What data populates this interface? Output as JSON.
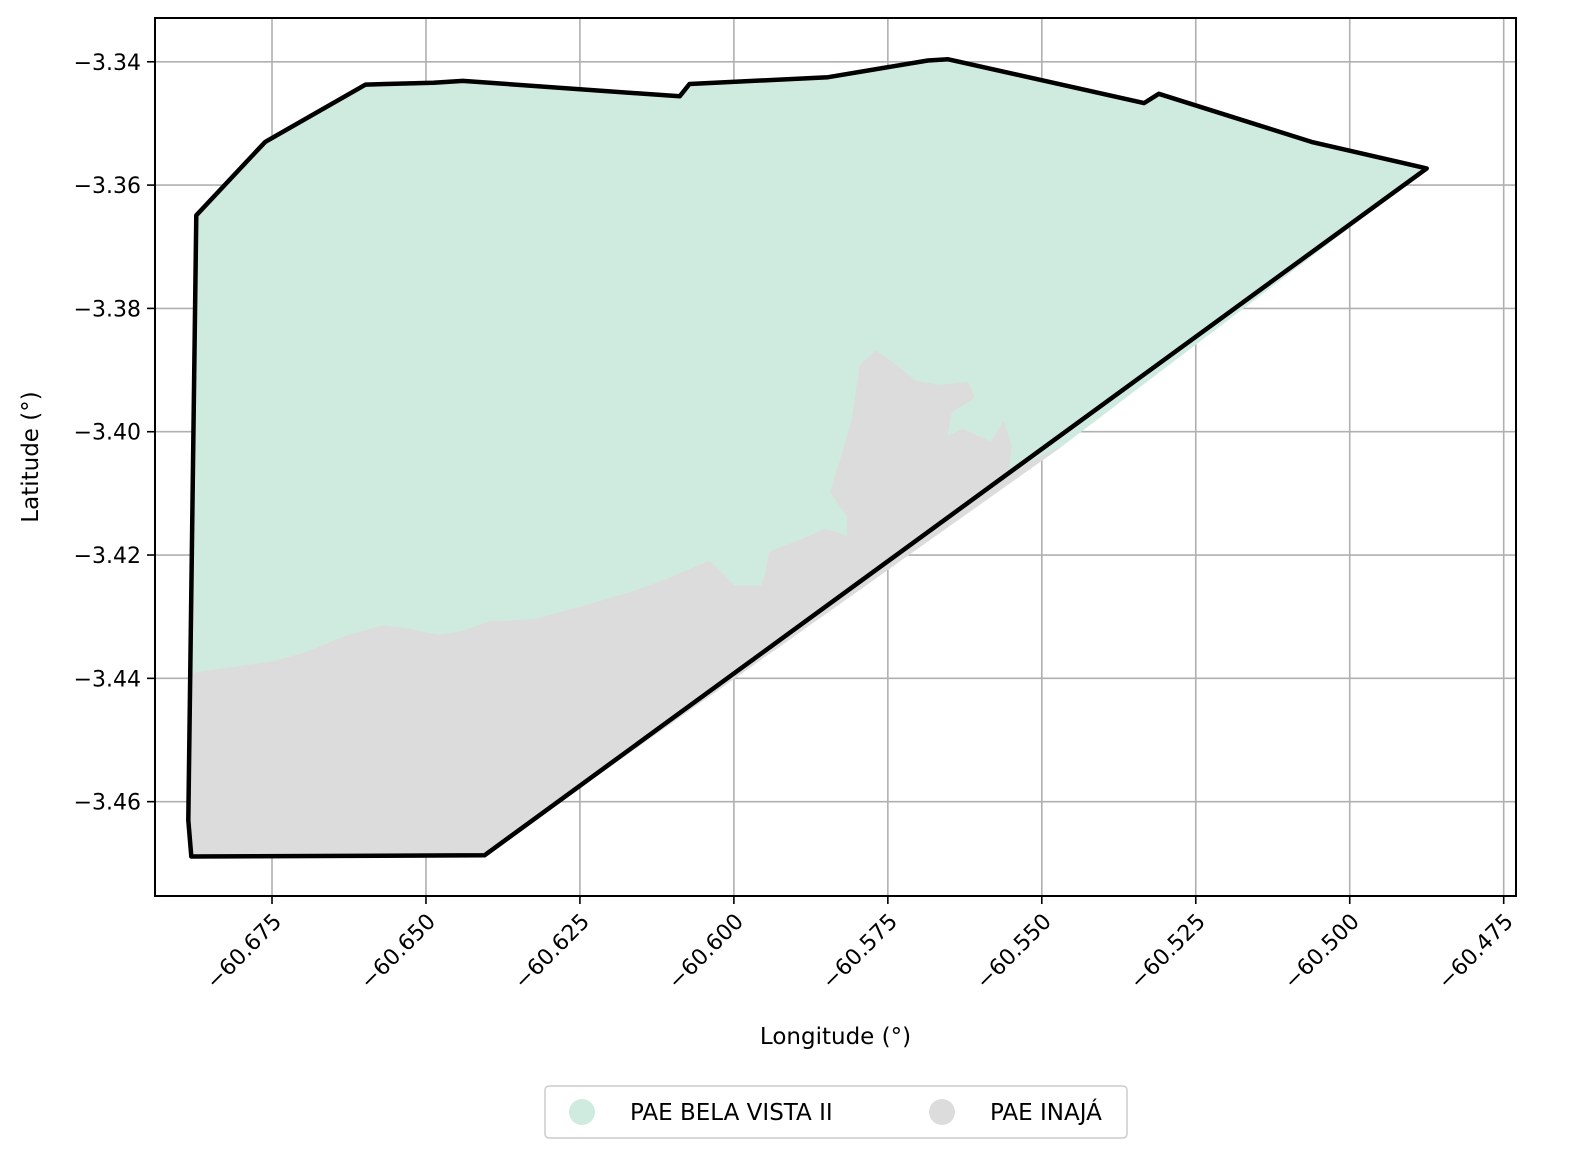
{
  "chart_data": {
    "type": "map",
    "xlabel": "Longitude (°)",
    "ylabel": "Latitude (°)",
    "xlim": [
      -60.694,
      -60.473
    ],
    "ylim": [
      -3.4753,
      -3.3329
    ],
    "xticks": [
      -60.675,
      -60.65,
      -60.625,
      -60.6,
      -60.575,
      -60.55,
      -60.525,
      -60.5,
      -60.475
    ],
    "xtick_labels": [
      "−60.675",
      "−60.650",
      "−60.625",
      "−60.600",
      "−60.575",
      "−60.550",
      "−60.525",
      "−60.500",
      "−60.475"
    ],
    "yticks": [
      -3.34,
      -3.36,
      -3.38,
      -3.4,
      -3.42,
      -3.44,
      -3.46
    ],
    "ytick_labels": [
      "−3.34",
      "−3.36",
      "−3.38",
      "−3.40",
      "−3.42",
      "−3.44",
      "−3.46"
    ],
    "grid": true,
    "legend_position": "bottom-center",
    "regions": [
      {
        "name": "PAE BELA VISTA II",
        "color": "#cfebdf",
        "polygon": [
          [
            -60.6873,
            -3.3649
          ],
          [
            -60.6761,
            -3.353
          ],
          [
            -60.6598,
            -3.3437
          ],
          [
            -60.6488,
            -3.3434
          ],
          [
            -60.644,
            -3.3431
          ],
          [
            -60.6088,
            -3.3456
          ],
          [
            -60.6072,
            -3.3436
          ],
          [
            -60.5847,
            -3.3425
          ],
          [
            -60.5685,
            -3.3398
          ],
          [
            -60.5652,
            -3.3396
          ],
          [
            -60.5334,
            -3.3467
          ],
          [
            -60.531,
            -3.3452
          ],
          [
            -60.5062,
            -3.353
          ],
          [
            -60.4875,
            -3.3573
          ],
          [
            -60.547,
            -3.4025
          ],
          [
            -60.5554,
            -3.4066
          ],
          [
            -60.555,
            -3.4022
          ],
          [
            -60.5562,
            -3.3984
          ],
          [
            -60.5583,
            -3.4017
          ],
          [
            -60.5628,
            -3.3996
          ],
          [
            -60.5654,
            -3.4008
          ],
          [
            -60.5647,
            -3.3968
          ],
          [
            -60.561,
            -3.3945
          ],
          [
            -60.562,
            -3.392
          ],
          [
            -60.5665,
            -3.3925
          ],
          [
            -60.5705,
            -3.3918
          ],
          [
            -60.5735,
            -3.3893
          ],
          [
            -60.577,
            -3.3869
          ],
          [
            -60.5795,
            -3.3893
          ],
          [
            -60.5808,
            -3.3982
          ],
          [
            -60.5822,
            -3.403
          ],
          [
            -60.5843,
            -3.4098
          ],
          [
            -60.5815,
            -3.4138
          ],
          [
            -60.5815,
            -3.417
          ],
          [
            -60.5852,
            -3.4158
          ],
          [
            -60.589,
            -3.4175
          ],
          [
            -60.5942,
            -3.4195
          ],
          [
            -60.5948,
            -3.423
          ],
          [
            -60.5955,
            -3.425
          ],
          [
            -60.6,
            -3.425
          ],
          [
            -60.604,
            -3.421
          ],
          [
            -60.611,
            -3.424
          ],
          [
            -60.6165,
            -3.426
          ],
          [
            -60.625,
            -3.4285
          ],
          [
            -60.6325,
            -3.4305
          ],
          [
            -60.6395,
            -3.4308
          ],
          [
            -60.6445,
            -3.4325
          ],
          [
            -60.648,
            -3.433
          ],
          [
            -60.653,
            -3.432
          ],
          [
            -60.657,
            -3.4315
          ],
          [
            -60.6625,
            -3.433
          ],
          [
            -60.67,
            -3.436
          ],
          [
            -60.6749,
            -3.4373
          ],
          [
            -60.688,
            -3.4392
          ],
          [
            -60.6873,
            -3.3649
          ]
        ]
      },
      {
        "name": "PAE INAJÁ",
        "color": "#dcdcdc",
        "polygon": [
          [
            -60.688,
            -3.4392
          ],
          [
            -60.6749,
            -3.4373
          ],
          [
            -60.67,
            -3.436
          ],
          [
            -60.6625,
            -3.433
          ],
          [
            -60.657,
            -3.4315
          ],
          [
            -60.653,
            -3.432
          ],
          [
            -60.648,
            -3.433
          ],
          [
            -60.6445,
            -3.4325
          ],
          [
            -60.6395,
            -3.4308
          ],
          [
            -60.6325,
            -3.4305
          ],
          [
            -60.625,
            -3.4285
          ],
          [
            -60.6165,
            -3.426
          ],
          [
            -60.611,
            -3.424
          ],
          [
            -60.604,
            -3.421
          ],
          [
            -60.6,
            -3.425
          ],
          [
            -60.5955,
            -3.425
          ],
          [
            -60.5948,
            -3.423
          ],
          [
            -60.5942,
            -3.4195
          ],
          [
            -60.589,
            -3.4175
          ],
          [
            -60.5852,
            -3.4158
          ],
          [
            -60.5815,
            -3.417
          ],
          [
            -60.5815,
            -3.4138
          ],
          [
            -60.5843,
            -3.4098
          ],
          [
            -60.5822,
            -3.403
          ],
          [
            -60.5808,
            -3.3982
          ],
          [
            -60.5795,
            -3.3893
          ],
          [
            -60.577,
            -3.3869
          ],
          [
            -60.5735,
            -3.3893
          ],
          [
            -60.5705,
            -3.3918
          ],
          [
            -60.5665,
            -3.3925
          ],
          [
            -60.562,
            -3.392
          ],
          [
            -60.561,
            -3.3945
          ],
          [
            -60.5647,
            -3.3968
          ],
          [
            -60.5654,
            -3.4008
          ],
          [
            -60.5628,
            -3.3996
          ],
          [
            -60.5583,
            -3.4017
          ],
          [
            -60.5562,
            -3.3984
          ],
          [
            -60.555,
            -3.4022
          ],
          [
            -60.5554,
            -3.4066
          ],
          [
            -60.547,
            -3.4025
          ],
          [
            -60.6405,
            -3.4687
          ],
          [
            -60.6881,
            -3.4689
          ],
          [
            -60.6886,
            -3.463
          ],
          [
            -60.688,
            -3.4392
          ]
        ]
      }
    ],
    "outline": [
      [
        -60.6873,
        -3.3649
      ],
      [
        -60.6761,
        -3.353
      ],
      [
        -60.6598,
        -3.3437
      ],
      [
        -60.6488,
        -3.3434
      ],
      [
        -60.644,
        -3.3431
      ],
      [
        -60.6088,
        -3.3456
      ],
      [
        -60.6072,
        -3.3436
      ],
      [
        -60.5847,
        -3.3425
      ],
      [
        -60.5685,
        -3.3398
      ],
      [
        -60.5652,
        -3.3396
      ],
      [
        -60.5334,
        -3.3467
      ],
      [
        -60.531,
        -3.3452
      ],
      [
        -60.5062,
        -3.353
      ],
      [
        -60.4875,
        -3.3573
      ],
      [
        -60.6405,
        -3.4687
      ],
      [
        -60.6881,
        -3.4689
      ],
      [
        -60.6886,
        -3.463
      ],
      [
        -60.6873,
        -3.3649
      ]
    ]
  }
}
